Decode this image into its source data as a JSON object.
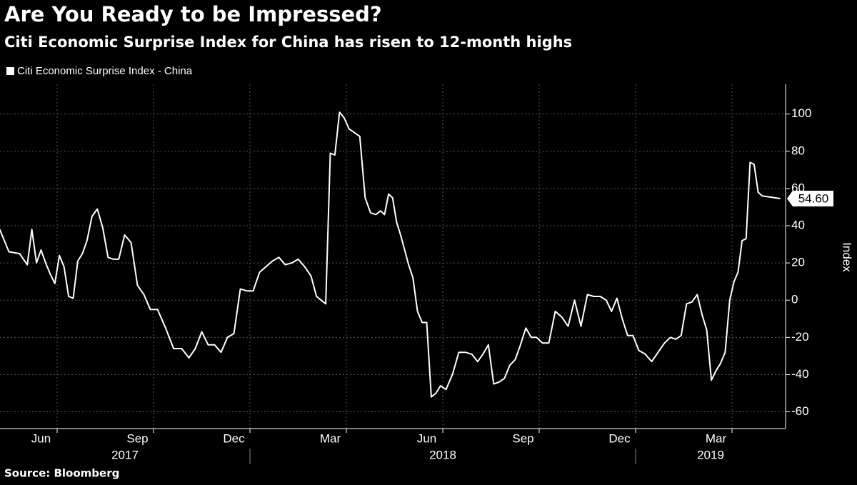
{
  "chart_data": {
    "type": "line",
    "title": "Are You Ready to be Impressed?",
    "subtitle": "Citi Economic Surprise Index for China has risen to 12-month highs",
    "y_label": "Index",
    "source": "Source: Bloomberg",
    "x": [
      "2017-05",
      "2017-05",
      "2017-05",
      "2017-06",
      "2017-06",
      "2017-06",
      "2017-06",
      "2017-06",
      "2017-06",
      "2017-06",
      "2017-07",
      "2017-07",
      "2017-07",
      "2017-07",
      "2017-07",
      "2017-07",
      "2017-07",
      "2017-08",
      "2017-08",
      "2017-08",
      "2017-08",
      "2017-08",
      "2017-08",
      "2017-09",
      "2017-09",
      "2017-09",
      "2017-09",
      "2017-09",
      "2017-10",
      "2017-10",
      "2017-10",
      "2017-10",
      "2017-11",
      "2017-11",
      "2017-11",
      "2017-11",
      "2017-11",
      "2017-12",
      "2017-12",
      "2017-12",
      "2017-12",
      "2017-12",
      "2018-01",
      "2018-01",
      "2018-01",
      "2018-01",
      "2018-01",
      "2018-02",
      "2018-02",
      "2018-02",
      "2018-02",
      "2018-02",
      "2018-03",
      "2018-03",
      "2018-03",
      "2018-03",
      "2018-03",
      "2018-03",
      "2018-03",
      "2018-04",
      "2018-04",
      "2018-04",
      "2018-04",
      "2018-04",
      "2018-04",
      "2018-05",
      "2018-05",
      "2018-05",
      "2018-05",
      "2018-05",
      "2018-05",
      "2018-05",
      "2018-05",
      "2018-06",
      "2018-06",
      "2018-06",
      "2018-06",
      "2018-06",
      "2018-06",
      "2018-06",
      "2018-07",
      "2018-07",
      "2018-07",
      "2018-07",
      "2018-07",
      "2018-08",
      "2018-08",
      "2018-08",
      "2018-08",
      "2018-08",
      "2018-08",
      "2018-09",
      "2018-09",
      "2018-09",
      "2018-09",
      "2018-09",
      "2018-09",
      "2018-10",
      "2018-10",
      "2018-10",
      "2018-10",
      "2018-10",
      "2018-11",
      "2018-11",
      "2018-11",
      "2018-11",
      "2018-11",
      "2018-12",
      "2018-12",
      "2018-12",
      "2018-12",
      "2018-12",
      "2018-12",
      "2019-01",
      "2019-01",
      "2019-01",
      "2019-01",
      "2019-01",
      "2019-02",
      "2019-02",
      "2019-02",
      "2019-02",
      "2019-02",
      "2019-02",
      "2019-03",
      "2019-03",
      "2019-03",
      "2019-03",
      "2019-03",
      "2019-03",
      "2019-03",
      "2019-04",
      "2019-04",
      "2019-04",
      "2019-04",
      "2019-04",
      "2019-04",
      "2019-04",
      "2019-04",
      "2019-05"
    ],
    "series": [
      {
        "name": "Citi Economic Surprise Index - China",
        "color": "#ffffff",
        "values": [
          40,
          26,
          25,
          19,
          38,
          20,
          27,
          20,
          14,
          9,
          24,
          18,
          2,
          1,
          21,
          25,
          32,
          45,
          49,
          39,
          23,
          22,
          22,
          35,
          31,
          8,
          3,
          -5,
          -5,
          -15,
          -26,
          -26,
          -31,
          -26,
          -17,
          -24,
          -24,
          -28,
          -20,
          -18,
          6,
          5,
          5,
          15,
          18,
          21,
          23,
          19,
          20,
          22,
          18,
          13,
          2,
          0,
          -2,
          79,
          78,
          101,
          98,
          92,
          90,
          88,
          55,
          47,
          46,
          48,
          46,
          57,
          55,
          42,
          35,
          27,
          19,
          12,
          -6,
          -12,
          -12,
          -52,
          -50,
          -46,
          -48,
          -40,
          -28,
          -28,
          -29,
          -33,
          -29,
          -24,
          -45,
          -44,
          -42,
          -35,
          -32,
          -24,
          -15,
          -20,
          -20,
          -23,
          -23,
          -6,
          -9,
          -14,
          0,
          -14,
          3,
          2,
          2,
          0,
          -6,
          1,
          -10,
          -19,
          -19,
          -27,
          -29,
          -33,
          -28,
          -23,
          -20,
          -21,
          -19,
          -2,
          -1,
          3,
          -8,
          -16,
          -43,
          -38,
          -34,
          -28,
          0,
          10,
          15,
          32,
          33,
          74,
          73,
          58,
          56,
          54.6
        ]
      }
    ],
    "last_value_label": {
      "value": 54.6,
      "label": "54.60"
    },
    "ylim": [
      -69,
      116
    ],
    "yticks": [
      -60,
      -40,
      -20,
      0,
      20,
      40,
      60,
      80,
      100
    ],
    "xticks": [
      {
        "value": "2017-06",
        "label": "Jun"
      },
      {
        "value": "2017-09",
        "label": "Sep"
      },
      {
        "value": "2017-12",
        "label": "Dec"
      },
      {
        "value": "2018-03",
        "label": "Mar"
      },
      {
        "value": "2018-06",
        "label": "Jun"
      },
      {
        "value": "2018-09",
        "label": "Sep"
      },
      {
        "value": "2018-12",
        "label": "Dec"
      },
      {
        "value": "2019-03",
        "label": "Mar"
      }
    ],
    "years": [
      "2017",
      "2018",
      "2019"
    ],
    "grid": true
  }
}
